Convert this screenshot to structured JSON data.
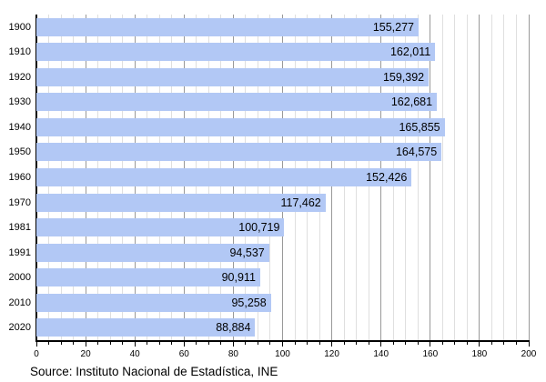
{
  "chart_data": {
    "type": "bar",
    "orientation": "horizontal",
    "title": "",
    "xlabel": "",
    "ylabel": "",
    "categories": [
      "1900",
      "1910",
      "1920",
      "1930",
      "1940",
      "1950",
      "1960",
      "1970",
      "1981",
      "1991",
      "2000",
      "2010",
      "2020"
    ],
    "values": [
      155277,
      162011,
      159392,
      162681,
      165855,
      164575,
      152426,
      117462,
      100719,
      94537,
      90911,
      95258,
      88884
    ],
    "value_labels": [
      "155,277",
      "162,011",
      "159,392",
      "162,681",
      "165,855",
      "164,575",
      "152,426",
      "117,462",
      "100,719",
      "94,537",
      "90,911",
      "95,258",
      "88,884"
    ],
    "xlim": [
      0,
      200
    ],
    "x_ticks_major": [
      0,
      20,
      40,
      60,
      80,
      100,
      120,
      140,
      160,
      180,
      200
    ],
    "x_tick_minor_step": 5,
    "axis_units_per_value": 1000,
    "grid": "vertical, minor every 5, major every 20",
    "legend": "none"
  },
  "colors": {
    "bar_fill": "#b2c8f5",
    "grid_minor": "#dfdfdf",
    "grid_major": "#999999",
    "axis": "#000000",
    "text": "#000000",
    "background": "#ffffff"
  },
  "source": "Source: Instituto Nacional de Estadística, INE"
}
